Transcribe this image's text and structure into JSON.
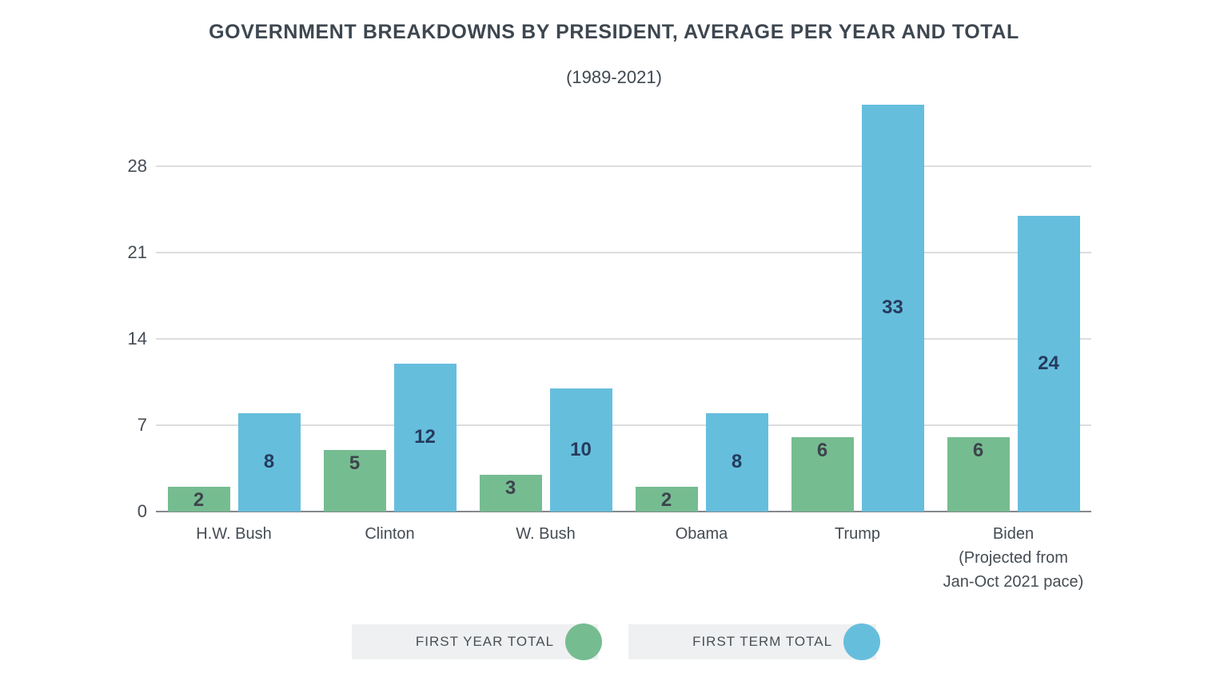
{
  "chart_data": {
    "type": "bar",
    "title": "GOVERNMENT BREAKDOWNS BY PRESIDENT, AVERAGE PER YEAR AND TOTAL",
    "subtitle": "(1989-2021)",
    "xlabel": "",
    "ylabel": "",
    "categories": [
      "H.W. Bush",
      "Clinton",
      "W. Bush",
      "Obama",
      "Trump",
      "Biden (Projected from Jan-Oct 2021 pace)"
    ],
    "category_lines": [
      [
        "H.W. Bush"
      ],
      [
        "Clinton"
      ],
      [
        "W. Bush"
      ],
      [
        "Obama"
      ],
      [
        "Trump"
      ],
      [
        "Biden",
        "(Projected from",
        "Jan-Oct 2021 pace)"
      ]
    ],
    "series": [
      {
        "name": "FIRST YEAR TOTAL",
        "values": [
          2,
          5,
          3,
          2,
          6,
          6
        ],
        "color": "#76bc91",
        "label_color": "#3d444b",
        "label_align": "top"
      },
      {
        "name": "FIRST TERM TOTAL",
        "values": [
          8,
          12,
          10,
          8,
          33,
          24
        ],
        "color": "#66bedd",
        "label_color": "#263b5e",
        "label_align": "center"
      }
    ],
    "yticks": [
      0,
      7,
      14,
      21,
      28
    ],
    "ylim": [
      0,
      33.7
    ],
    "grid": "horizontal",
    "legend_position": "bottom"
  },
  "legend": {
    "items": [
      {
        "label": "FIRST YEAR TOTAL",
        "color": "#76bc91"
      },
      {
        "label": "FIRST TERM TOTAL",
        "color": "#66bedd"
      }
    ]
  },
  "colors": {
    "first_year_green": "#76bc91",
    "first_term_blue": "#66bedd",
    "gridline": "#dcdddf",
    "axis_line": "#85898c",
    "title_text": "#3e4750",
    "blue_bar_label": "#263b5e",
    "green_bar_label": "#3d444b",
    "legend_background": "#eff0f1"
  }
}
